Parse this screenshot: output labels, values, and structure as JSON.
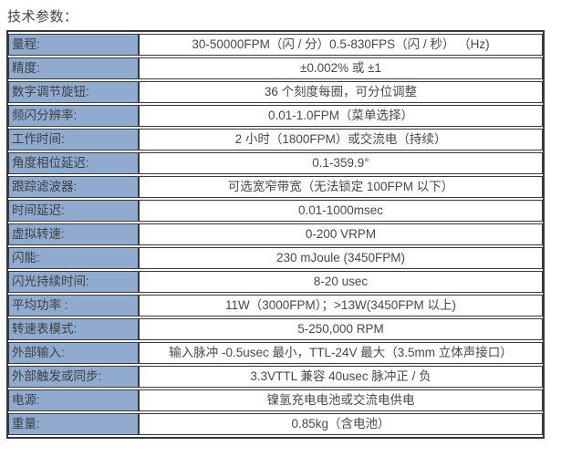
{
  "page": {
    "title": "技术参数："
  },
  "colors": {
    "label_cell_bg": "#90abce",
    "border": "#36393e",
    "text": "#414348",
    "page_bg": "#ffffff"
  },
  "table": {
    "rows": [
      {
        "label": "量程:",
        "value": "30-50000FPM（闪 / 分）0.5-830FPS（闪 / 秒） （Hz)"
      },
      {
        "label": "精度:",
        "value": "±0.002% 或 ±1"
      },
      {
        "label": "数字调节旋钮:",
        "value": "36 个刻度每圈，可分位调整"
      },
      {
        "label": "频闪分辨率:",
        "value": "0.01-1.0FPM（菜单选择）"
      },
      {
        "label": "工作时间:",
        "value": "2 小时（1800FPM）或交流电（持续）"
      },
      {
        "label": "角度相位延迟:",
        "value": "0.1-359.9°"
      },
      {
        "label": "跟踪滤波器:",
        "value": "可选宽窄带宽（无法锁定 100FPM 以下）"
      },
      {
        "label": "时间延迟:",
        "value": "0.01-1000msec"
      },
      {
        "label": "虚拟转速:",
        "value": "0-200 VRPM"
      },
      {
        "label": "闪能:",
        "value": "230 mJoule (3450FPM)"
      },
      {
        "label": "闪光持续时间:",
        "value": "8-20 usec"
      },
      {
        "label": "平均功率 :",
        "value": "11W（3000FPM）；>13W(3450FPM 以上)"
      },
      {
        "label": "转速表模式:",
        "value": "5-250,000 RPM"
      },
      {
        "label": "外部输入:",
        "value": "输入脉冲 -0.5usec 最小，TTL-24V 最大（3.5mm 立体声接口）"
      },
      {
        "label": "外部触发或同步:",
        "value": "3.3VTTL 兼容 40usec 脉冲正 / 负"
      },
      {
        "label": "电源:",
        "value": "镍氢充电电池或交流电供电"
      },
      {
        "label": "重量:",
        "value": "0.85kg（含电池）"
      }
    ]
  }
}
